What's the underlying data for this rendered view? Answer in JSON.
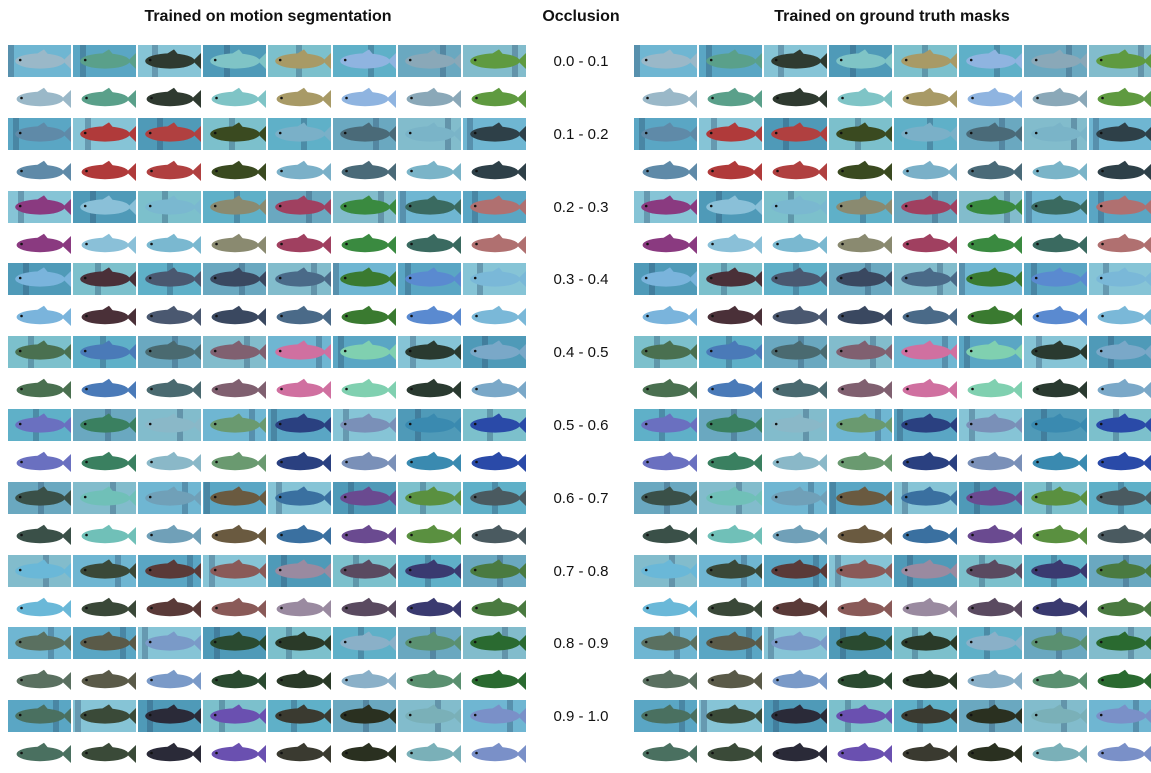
{
  "headers": {
    "left": "Trained on motion segmentation",
    "middle": "Occlusion",
    "right": "Trained on ground truth masks"
  },
  "occlusion_ranges": [
    "0.0 - 0.1",
    "0.1 - 0.2",
    "0.2 - 0.3",
    "0.3 - 0.4",
    "0.4 - 0.5",
    "0.5 - 0.6",
    "0.6 - 0.7",
    "0.7 - 0.8",
    "0.8 - 0.9",
    "0.9 - 1.0"
  ],
  "images_per_row": 8,
  "fish_colors": [
    [
      "#9ab8c8",
      "#5aa08a",
      "#2f3a30",
      "#7fc4c6",
      "#a89a66",
      "#8fb4e0",
      "#8aa8b8",
      "#5f9a40"
    ],
    [
      "#5f8aa8",
      "#b03a3a",
      "#b04040",
      "#3a4a20",
      "#7ab0c8",
      "#4a6a78",
      "#7ab4c8",
      "#2e4048"
    ],
    [
      "#8a3a80",
      "#8ac0d8",
      "#7ab8d0",
      "#8a8a70",
      "#a04060",
      "#3a8a40",
      "#3a6a60",
      "#b07070"
    ],
    [
      "#7ab4dc",
      "#4a3038",
      "#4a5870",
      "#3a4860",
      "#4a6a88",
      "#3a7a30",
      "#5a8ad0",
      "#7ab8d8"
    ],
    [
      "#4a7050",
      "#4a7ab8",
      "#4a6a70",
      "#806070",
      "#d070a0",
      "#80d0b0",
      "#2a3a30",
      "#7aa8c8"
    ],
    [
      "#6a70c0",
      "#3a8060",
      "#8ab8c8",
      "#6a9a70",
      "#2a4080",
      "#7a90b8",
      "#3a8ab0",
      "#2a4aa8"
    ],
    [
      "#3a5048",
      "#70c0b8",
      "#70a0b8",
      "#6a5a40",
      "#3a70a0",
      "#6a4a90",
      "#5a9040",
      "#4a5a60"
    ],
    [
      "#6ab8d8",
      "#3a4838",
      "#5a3a38",
      "#8a5a58",
      "#9a8aa0",
      "#5a4a60",
      "#3a3a70",
      "#4a7a40"
    ],
    [
      "#5a7060",
      "#5a5a48",
      "#7a9ac8",
      "#2a4a30",
      "#2a3a28",
      "#8ab0c8",
      "#5a9070",
      "#2a6a30"
    ],
    [
      "#4a7060",
      "#3a4a38",
      "#2a2a38",
      "#6a50b0",
      "#3a3a30",
      "#2a3020",
      "#7ab0b8",
      "#7a90c8"
    ]
  ]
}
